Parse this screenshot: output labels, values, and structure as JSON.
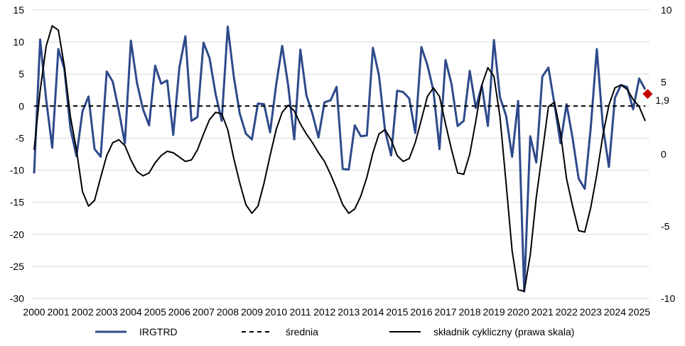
{
  "chart_data": {
    "type": "line",
    "x_labels": [
      "2000",
      "2001",
      "2002",
      "2003",
      "2004",
      "2005",
      "2006",
      "2007",
      "2008",
      "2009",
      "2010",
      "2011",
      "2012",
      "2013",
      "2014",
      "2015",
      "2016",
      "2017",
      "2018",
      "2019",
      "2020",
      "2021",
      "2022",
      "2023",
      "2024",
      "2025"
    ],
    "left_axis": {
      "ylim": [
        -30,
        15
      ],
      "ticks": [
        15,
        10,
        5,
        0,
        -5,
        -10,
        -15,
        -20,
        -25,
        -30
      ]
    },
    "right_axis": {
      "ylim": [
        -10,
        10
      ],
      "ticks": [
        10,
        5,
        0,
        -5,
        -10
      ]
    },
    "grid": true,
    "legend_placement": "bottom",
    "series": [
      {
        "name": "IRGTRD",
        "axis": "left",
        "color": "#2E4A8B",
        "x": [
          2000.0,
          2000.25,
          2000.5,
          2000.75,
          2001.0,
          2001.25,
          2001.5,
          2001.75,
          2002.0,
          2002.25,
          2002.5,
          2002.75,
          2003.0,
          2003.25,
          2003.5,
          2003.75,
          2004.0,
          2004.25,
          2004.5,
          2004.75,
          2005.0,
          2005.25,
          2005.5,
          2005.75,
          2006.0,
          2006.25,
          2006.5,
          2006.75,
          2007.0,
          2007.25,
          2007.5,
          2007.75,
          2008.0,
          2008.25,
          2008.5,
          2008.75,
          2009.0,
          2009.25,
          2009.5,
          2009.75,
          2010.0,
          2010.25,
          2010.5,
          2010.75,
          2011.0,
          2011.25,
          2011.5,
          2011.75,
          2012.0,
          2012.25,
          2012.5,
          2012.75,
          2013.0,
          2013.25,
          2013.5,
          2013.75,
          2014.0,
          2014.25,
          2014.5,
          2014.75,
          2015.0,
          2015.25,
          2015.5,
          2015.75,
          2016.0,
          2016.25,
          2016.5,
          2016.75,
          2017.0,
          2017.25,
          2017.5,
          2017.75,
          2018.0,
          2018.25,
          2018.5,
          2018.75,
          2019.0,
          2019.25,
          2019.5,
          2019.75,
          2020.0,
          2020.25,
          2020.5,
          2020.75,
          2021.0,
          2021.25,
          2021.5,
          2021.75,
          2022.0,
          2022.25,
          2022.5,
          2022.75,
          2023.0,
          2023.25,
          2023.5,
          2023.75,
          2024.0,
          2024.25,
          2024.5,
          2024.75,
          2025.0,
          2025.25
        ],
        "values": [
          -10.5,
          10.4,
          1.0,
          -6.5,
          8.9,
          5.8,
          -3.5,
          -7.8,
          -0.8,
          1.5,
          -6.7,
          -7.9,
          5.4,
          3.8,
          -0.7,
          -5.8,
          10.2,
          3.6,
          -0.5,
          -3.0,
          6.3,
          3.5,
          4.0,
          -4.5,
          6.0,
          10.9,
          -2.3,
          -1.7,
          9.9,
          7.5,
          1.9,
          -2.3,
          12.4,
          4.6,
          -1.2,
          -4.3,
          -5.2,
          0.4,
          0.3,
          -4.1,
          3.3,
          9.4,
          3.2,
          -5.2,
          8.8,
          1.7,
          -1.2,
          -4.9,
          0.6,
          0.9,
          3.0,
          -9.8,
          -9.9,
          -3.0,
          -4.7,
          -4.6,
          9.1,
          4.8,
          -3.8,
          -7.7,
          2.4,
          2.2,
          1.2,
          -4.2,
          9.2,
          6.4,
          2.4,
          -6.7,
          7.2,
          3.4,
          -3.1,
          -2.3,
          5.5,
          -0.3,
          3.2,
          -3.1,
          10.3,
          1.4,
          -1.5,
          -7.9,
          0.8,
          -28.9,
          -4.7,
          -8.8,
          4.6,
          6.0,
          0.3,
          -5.8,
          0.3,
          -5.0,
          -11.3,
          -12.9,
          -3.3,
          8.9,
          -3.1,
          -9.5,
          1.3,
          3.3,
          3.0,
          -0.5,
          4.3,
          2.6
        ]
      },
      {
        "name": "średnia",
        "axis": "left",
        "color": "#000000",
        "dash": true,
        "x": [
          2000.0,
          2025.25
        ],
        "values": [
          0,
          0
        ]
      },
      {
        "name": "składnik cykliczny (prawa skala)",
        "axis": "right",
        "color": "#000000",
        "x": [
          2000.0,
          2000.25,
          2000.5,
          2000.75,
          2001.0,
          2001.25,
          2001.5,
          2001.75,
          2002.0,
          2002.25,
          2002.5,
          2002.75,
          2003.0,
          2003.25,
          2003.5,
          2003.75,
          2004.0,
          2004.25,
          2004.5,
          2004.75,
          2005.0,
          2005.25,
          2005.5,
          2005.75,
          2006.0,
          2006.25,
          2006.5,
          2006.75,
          2007.0,
          2007.25,
          2007.5,
          2007.75,
          2008.0,
          2008.25,
          2008.5,
          2008.75,
          2009.0,
          2009.25,
          2009.5,
          2009.75,
          2010.0,
          2010.25,
          2010.5,
          2010.75,
          2011.0,
          2011.25,
          2011.5,
          2011.75,
          2012.0,
          2012.25,
          2012.5,
          2012.75,
          2013.0,
          2013.25,
          2013.5,
          2013.75,
          2014.0,
          2014.25,
          2014.5,
          2014.75,
          2015.0,
          2015.25,
          2015.5,
          2015.75,
          2016.0,
          2016.25,
          2016.5,
          2016.75,
          2017.0,
          2017.25,
          2017.5,
          2017.75,
          2018.0,
          2018.25,
          2018.5,
          2018.75,
          2019.0,
          2019.25,
          2019.5,
          2019.75,
          2020.0,
          2020.25,
          2020.5,
          2020.75,
          2021.0,
          2021.25,
          2021.5,
          2021.75,
          2022.0,
          2022.25,
          2022.5,
          2022.75,
          2023.0,
          2023.25,
          2023.5,
          2023.75,
          2024.0,
          2024.25,
          2024.5,
          2024.75,
          2025.0,
          2025.25
        ],
        "values": [
          0.3,
          4.4,
          7.5,
          8.9,
          8.6,
          6.1,
          2.6,
          0.3,
          -2.6,
          -3.6,
          -3.2,
          -1.6,
          -0.1,
          0.8,
          1.0,
          0.6,
          -0.4,
          -1.2,
          -1.5,
          -1.3,
          -0.6,
          -0.1,
          0.2,
          0.1,
          -0.2,
          -0.5,
          -0.4,
          0.3,
          1.4,
          2.4,
          2.9,
          2.8,
          1.7,
          -0.3,
          -2.0,
          -3.5,
          -4.1,
          -3.6,
          -2.0,
          -0.1,
          1.7,
          2.9,
          3.4,
          3.0,
          2.1,
          1.4,
          0.8,
          0.1,
          -0.5,
          -1.4,
          -2.4,
          -3.5,
          -4.1,
          -3.8,
          -2.9,
          -1.6,
          0.1,
          1.4,
          1.7,
          1.0,
          -0.1,
          -0.5,
          -0.3,
          0.8,
          2.4,
          4.0,
          4.6,
          4.0,
          2.1,
          0.3,
          -1.3,
          -1.4,
          0.0,
          2.3,
          4.8,
          6.0,
          5.4,
          2.6,
          -2.0,
          -6.7,
          -9.4,
          -9.5,
          -7.0,
          -3.0,
          0.1,
          3.3,
          3.6,
          1.5,
          -1.7,
          -3.6,
          -5.3,
          -5.4,
          -3.7,
          -1.4,
          1.3,
          3.4,
          4.6,
          4.8,
          4.5,
          3.8,
          3.3,
          2.3
        ]
      }
    ],
    "annotation": {
      "label": "1,9",
      "x": 2025.35,
      "value": 1.9,
      "axis": "left",
      "color": "#C00000"
    },
    "legend": [
      {
        "label": "IRGTRD",
        "color": "#2E4A8B",
        "style": "solid-thick"
      },
      {
        "label": "średnia",
        "color": "#000000",
        "style": "dashed"
      },
      {
        "label": "składnik cykliczny (prawa skala)",
        "color": "#000000",
        "style": "solid"
      }
    ]
  }
}
